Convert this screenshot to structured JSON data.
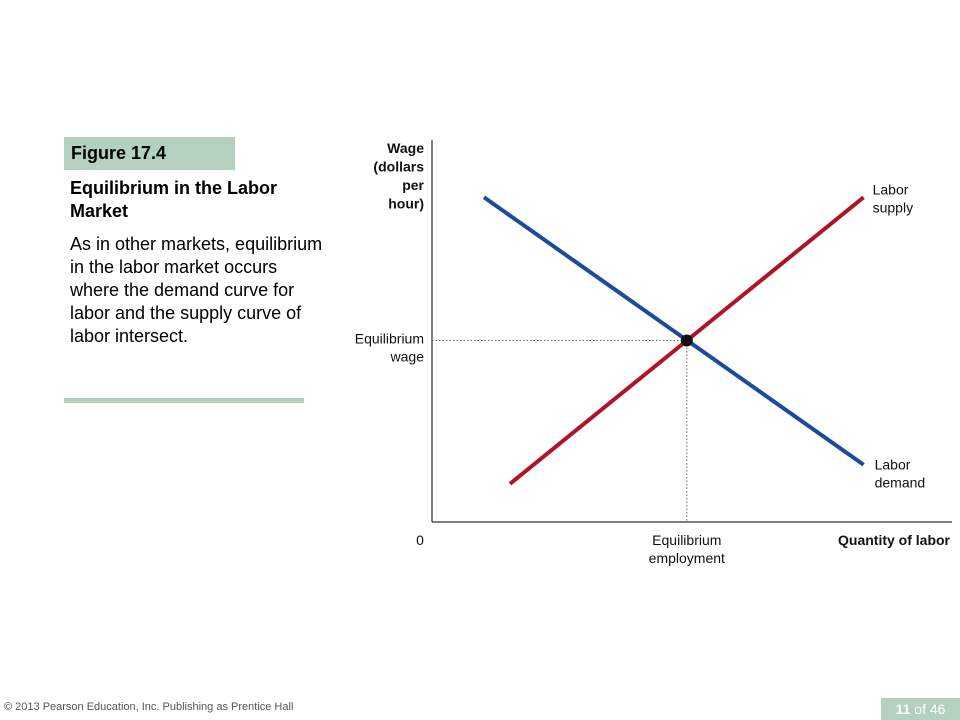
{
  "figure": {
    "label": "Figure 17.4",
    "title": "Equilibrium in the Labor Market",
    "description": "As in other markets, equilibrium in the labor market occurs where the demand curve for labor and the supply curve of labor intersect."
  },
  "footer": {
    "copyright": "© 2013 Pearson Education, Inc. Publishing as Prentice Hall",
    "page_current": "11",
    "page_total_text": "of 46"
  },
  "colors": {
    "accent": "#b4d0bf",
    "demand": "#1a4b9c",
    "supply": "#b01228"
  },
  "chart_data": {
    "type": "line",
    "xlabel": "Quantity of labor",
    "ylabel": [
      "Wage",
      "(dollars",
      "per",
      "hour)"
    ],
    "origin_label": "0",
    "xlim": [
      0,
      100
    ],
    "ylim": [
      0,
      100
    ],
    "grid": false,
    "ticks": false,
    "series": [
      {
        "name": "Labor demand",
        "label_lines": [
          "Labor",
          "demand"
        ],
        "color": "#1a4b9c",
        "points": [
          [
            10,
            85
          ],
          [
            83,
            15
          ]
        ]
      },
      {
        "name": "Labor supply",
        "label_lines": [
          "Labor",
          "supply"
        ],
        "color": "#b01228",
        "points": [
          [
            15,
            10
          ],
          [
            83,
            85
          ]
        ]
      }
    ],
    "equilibrium": {
      "x": 49,
      "y": 47.5,
      "x_label_lines": [
        "Equilibrium",
        "employment"
      ],
      "y_label_lines": [
        "Equilibrium",
        "wage"
      ]
    }
  }
}
